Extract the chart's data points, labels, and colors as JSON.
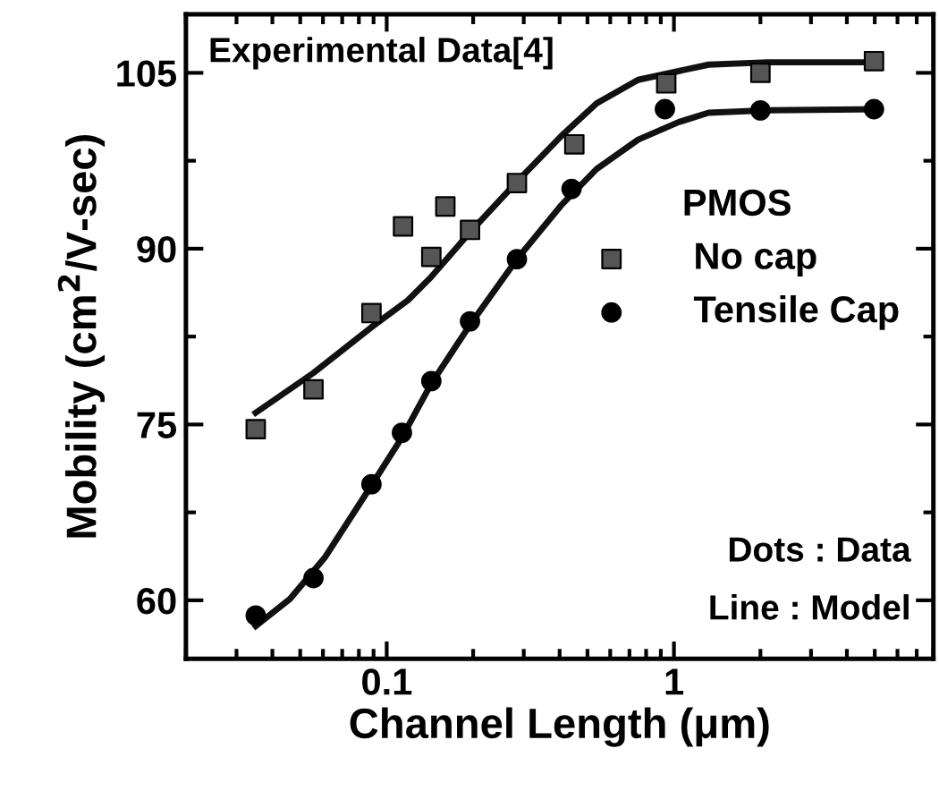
{
  "chart_data": {
    "type": "scatter",
    "xlabel": "Channel Length (μm)",
    "ylabel": "Mobility (cm$^{2}$/V-sec)",
    "legend_title": "PMOS",
    "log": "x",
    "xlim": [
      0.02,
      8
    ],
    "xticks": [
      0.1,
      1
    ],
    "ylim": [
      55,
      110
    ],
    "yticks": [
      60,
      75,
      90,
      105
    ],
    "grid": false,
    "legend": "right",
    "annotations": [
      "Experimental Data[4]",
      "Dots : Data",
      "Line : Model"
    ],
    "series": [
      {
        "name": "No cap",
        "marker": "square",
        "color": "#555555",
        "x": [
          0.035,
          0.0556,
          0.0885,
          0.114,
          0.143,
          0.16,
          0.195,
          0.284,
          0.45,
          0.94,
          2.0,
          4.97
        ],
        "values": [
          74.6,
          78.0,
          84.5,
          91.9,
          89.3,
          93.6,
          91.6,
          95.6,
          98.9,
          104.1,
          105.0,
          106.0
        ]
      },
      {
        "name": "Tensile Cap",
        "marker": "circle",
        "color": "#000000",
        "x": [
          0.035,
          0.0556,
          0.0885,
          0.113,
          0.143,
          0.195,
          0.284,
          0.44,
          0.93,
          2.0,
          4.97
        ],
        "values": [
          58.7,
          61.9,
          69.9,
          74.3,
          78.7,
          83.8,
          89.1,
          95.1,
          101.9,
          101.8,
          101.9
        ]
      },
      {
        "type": "line",
        "marker": "none",
        "line_style": "solid",
        "color": "#111111",
        "x": [
          0.035,
          0.0556,
          0.0885,
          0.1186,
          0.143,
          0.195,
          0.284,
          0.405,
          0.538,
          0.75,
          1.32,
          2.12,
          5.2
        ],
        "values": [
          76.0,
          79.4,
          83.3,
          85.6,
          87.6,
          91.4,
          95.7,
          99.6,
          102.4,
          104.4,
          105.7,
          105.9,
          105.9
        ]
      },
      {
        "type": "line",
        "marker": "none",
        "line_style": "solid",
        "color": "#111111",
        "x": [
          0.035,
          0.046,
          0.0611,
          0.0885,
          0.113,
          0.143,
          0.195,
          0.284,
          0.405,
          0.538,
          0.75,
          1.04,
          1.32,
          2.12,
          5.2
        ],
        "values": [
          57.8,
          60.1,
          63.7,
          69.8,
          73.9,
          78.5,
          83.5,
          89.1,
          93.7,
          96.8,
          99.3,
          100.8,
          101.6,
          101.8,
          101.9
        ]
      }
    ]
  }
}
